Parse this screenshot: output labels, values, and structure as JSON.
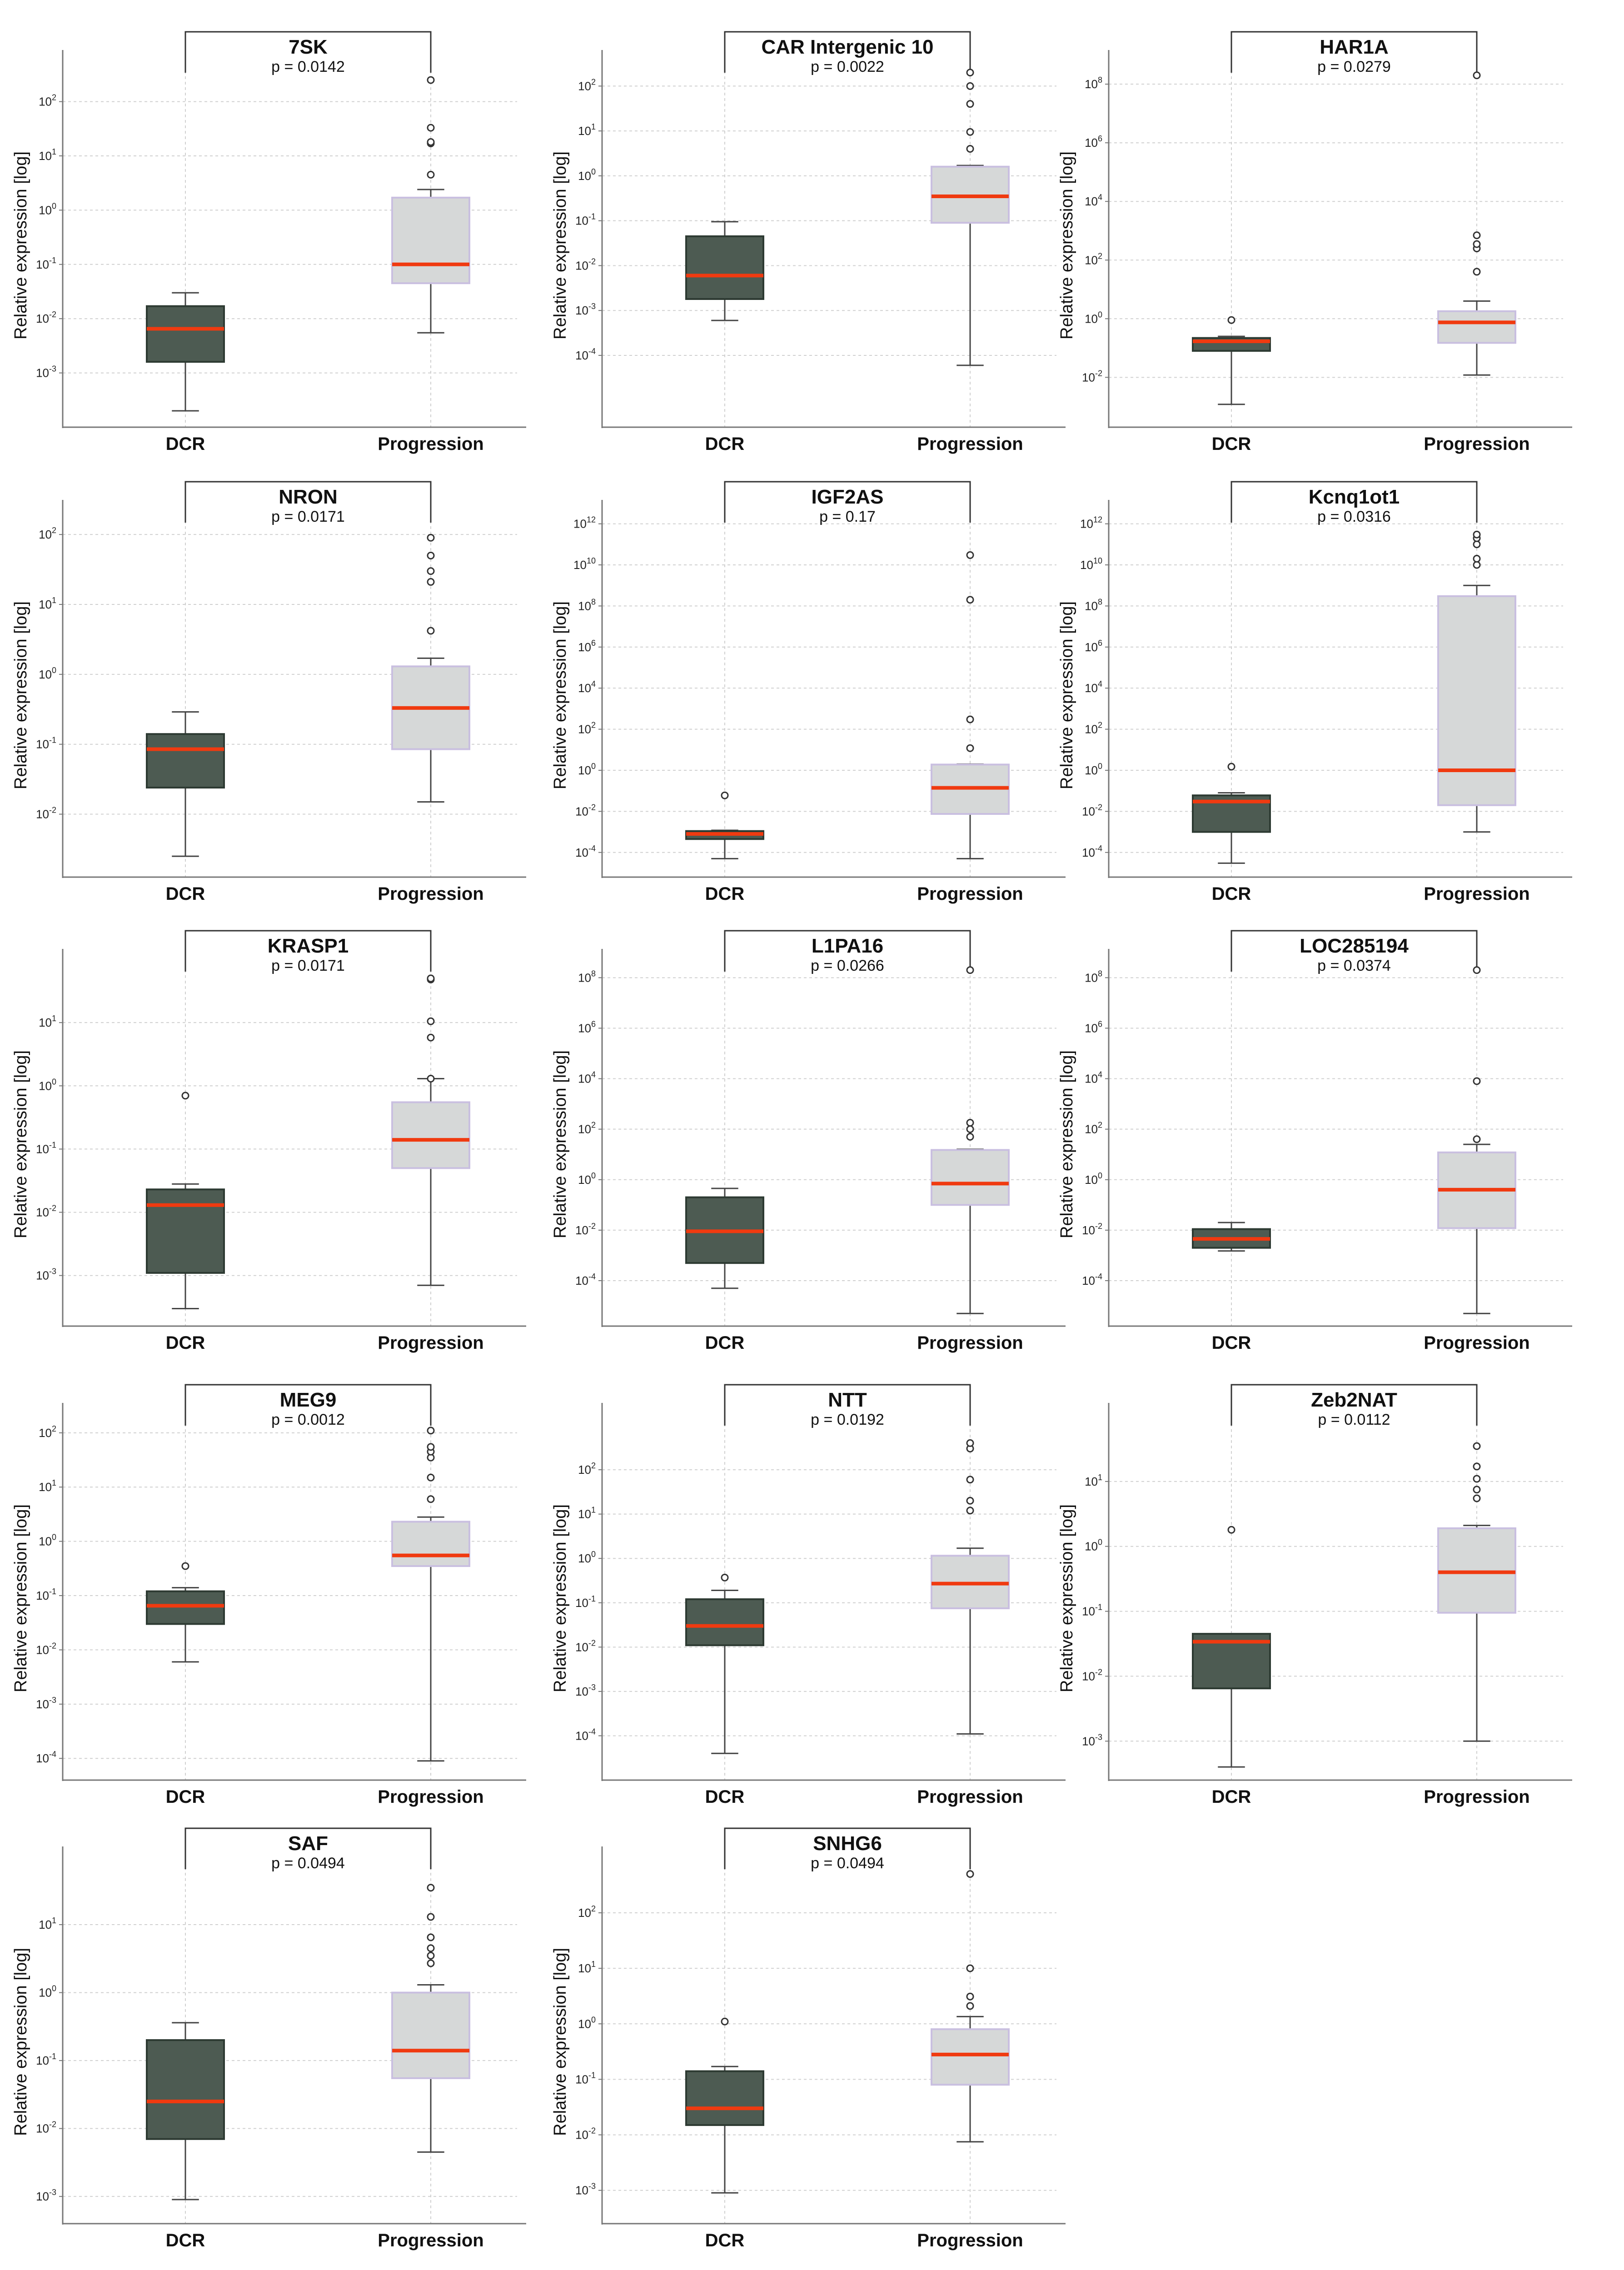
{
  "figure": {
    "ylabel": "Relative expression [log]",
    "categories": [
      "DCR",
      "Progression"
    ]
  },
  "colors": {
    "dcr_box": "#4d5b52",
    "prog_box": "#d6d8d8",
    "prog_box_edge": "#c9bfe0",
    "median": "#f03a10",
    "whisker": "#444444",
    "outlier": "#333333",
    "grid": "#d0d0d0",
    "axis": "#777777",
    "bracket": "#333333"
  },
  "chart_data": [
    {
      "type": "box",
      "title": "7SK",
      "pvalue": "p = 0.0142",
      "ylabel": "Relative expression [log]",
      "categories": [
        "DCR",
        "Progression"
      ],
      "ticks_exp": [
        -3,
        -2,
        -1,
        0,
        1,
        2
      ],
      "ylim_exp": [
        -4.0,
        2.7
      ],
      "boxes": [
        {
          "category": "DCR",
          "whislo": 0.0002,
          "q1": 0.0016,
          "med": 0.0065,
          "q3": 0.017,
          "whishi": 0.03,
          "outliers": []
        },
        {
          "category": "Progression",
          "whislo": 0.0055,
          "q1": 0.045,
          "med": 0.1,
          "q3": 1.7,
          "whishi": 2.4,
          "outliers": [
            4.5,
            17,
            18,
            33,
            250
          ]
        }
      ]
    },
    {
      "type": "box",
      "title": "CAR Intergenic 10",
      "pvalue": "p = 0.0022",
      "ylabel": "Relative expression [log]",
      "categories": [
        "DCR",
        "Progression"
      ],
      "ticks_exp": [
        -4,
        -3,
        -2,
        -1,
        0,
        1,
        2
      ],
      "ylim_exp": [
        -5.6,
        2.5
      ],
      "boxes": [
        {
          "category": "DCR",
          "whislo": 0.0006,
          "q1": 0.0018,
          "med": 0.006,
          "q3": 0.045,
          "whishi": 0.095,
          "outliers": []
        },
        {
          "category": "Progression",
          "whislo": 6e-05,
          "q1": 0.09,
          "med": 0.35,
          "q3": 1.6,
          "whishi": 1.7,
          "outliers": [
            4,
            9.5,
            40,
            100,
            200
          ]
        }
      ]
    },
    {
      "type": "box",
      "title": "HAR1A",
      "pvalue": "p = 0.0279",
      "ylabel": "Relative expression [log]",
      "categories": [
        "DCR",
        "Progression"
      ],
      "ticks_exp": [
        -2,
        0,
        2,
        4,
        6,
        8
      ],
      "ylim_exp": [
        -3.7,
        8.7
      ],
      "boxes": [
        {
          "category": "DCR",
          "whislo": 0.0012,
          "q1": 0.08,
          "med": 0.17,
          "q3": 0.22,
          "whishi": 0.25,
          "outliers": [
            0.9
          ]
        },
        {
          "category": "Progression",
          "whislo": 0.012,
          "q1": 0.15,
          "med": 0.75,
          "q3": 1.8,
          "whishi": 4,
          "outliers": [
            40,
            250,
            350,
            700,
            200000000
          ]
        }
      ]
    },
    {
      "type": "box",
      "title": "NRON",
      "pvalue": "p = 0.0171",
      "ylabel": "Relative expression [log]",
      "categories": [
        "DCR",
        "Progression"
      ],
      "ticks_exp": [
        -2,
        -1,
        0,
        1,
        2
      ],
      "ylim_exp": [
        -2.9,
        2.3
      ],
      "boxes": [
        {
          "category": "DCR",
          "whislo": 0.0025,
          "q1": 0.024,
          "med": 0.085,
          "q3": 0.14,
          "whishi": 0.29,
          "outliers": []
        },
        {
          "category": "Progression",
          "whislo": 0.015,
          "q1": 0.085,
          "med": 0.33,
          "q3": 1.3,
          "whishi": 1.7,
          "outliers": [
            4.2,
            21,
            30,
            50,
            90
          ]
        }
      ]
    },
    {
      "type": "box",
      "title": "IGF2AS",
      "pvalue": "p = 0.17",
      "ylabel": "Relative expression [log]",
      "categories": [
        "DCR",
        "Progression"
      ],
      "ticks_exp": [
        -4,
        -2,
        0,
        2,
        4,
        6,
        8,
        10,
        12
      ],
      "ylim_exp": [
        -5.2,
        12.5
      ],
      "boxes": [
        {
          "category": "DCR",
          "whislo": 5e-05,
          "q1": 0.00045,
          "med": 0.0008,
          "q3": 0.0011,
          "whishi": 0.0012,
          "outliers": [
            0.06
          ]
        },
        {
          "category": "Progression",
          "whislo": 5e-05,
          "q1": 0.0075,
          "med": 0.14,
          "q3": 1.9,
          "whishi": 2,
          "outliers": [
            12,
            300,
            200000000,
            30000000000
          ]
        }
      ]
    },
    {
      "type": "box",
      "title": "Kcnq1ot1",
      "pvalue": "p = 0.0316",
      "ylabel": "Relative expression [log]",
      "categories": [
        "DCR",
        "Progression"
      ],
      "ticks_exp": [
        -4,
        -2,
        0,
        2,
        4,
        6,
        8,
        10,
        12
      ],
      "ylim_exp": [
        -5.2,
        12.5
      ],
      "boxes": [
        {
          "category": "DCR",
          "whislo": 3e-05,
          "q1": 0.001,
          "med": 0.03,
          "q3": 0.06,
          "whishi": 0.08,
          "outliers": [
            1.5
          ]
        },
        {
          "category": "Progression",
          "whislo": 0.001,
          "q1": 0.02,
          "med": 1,
          "q3": 300000000,
          "whishi": 1000000000,
          "outliers": [
            10000000000,
            20000000000,
            100000000000,
            200000000000,
            300000000000
          ]
        }
      ]
    },
    {
      "type": "box",
      "title": "KRASP1",
      "pvalue": "p = 0.0171",
      "ylabel": "Relative expression [log]",
      "categories": [
        "DCR",
        "Progression"
      ],
      "ticks_exp": [
        -3,
        -2,
        -1,
        0,
        1
      ],
      "ylim_exp": [
        -3.8,
        1.95
      ],
      "boxes": [
        {
          "category": "DCR",
          "whislo": 0.0003,
          "q1": 0.0011,
          "med": 0.013,
          "q3": 0.023,
          "whishi": 0.028,
          "outliers": [
            0.7
          ]
        },
        {
          "category": "Progression",
          "whislo": 0.0007,
          "q1": 0.05,
          "med": 0.14,
          "q3": 0.55,
          "whishi": 1.3,
          "outliers": [
            1.3,
            5.8,
            10.5,
            48,
            50
          ]
        }
      ]
    },
    {
      "type": "box",
      "title": "L1PA16",
      "pvalue": "p = 0.0266",
      "ylabel": "Relative expression [log]",
      "categories": [
        "DCR",
        "Progression"
      ],
      "ticks_exp": [
        -4,
        -2,
        0,
        2,
        4,
        6,
        8
      ],
      "ylim_exp": [
        -5.8,
        8.6
      ],
      "boxes": [
        {
          "category": "DCR",
          "whislo": 5e-05,
          "q1": 0.0005,
          "med": 0.009,
          "q3": 0.2,
          "whishi": 0.45,
          "outliers": []
        },
        {
          "category": "Progression",
          "whislo": 5e-06,
          "q1": 0.1,
          "med": 0.7,
          "q3": 15,
          "whishi": 16,
          "outliers": [
            50,
            100,
            180,
            200000000
          ]
        }
      ]
    },
    {
      "type": "box",
      "title": "LOC285194",
      "pvalue": "p = 0.0374",
      "ylabel": "Relative expression [log]",
      "categories": [
        "DCR",
        "Progression"
      ],
      "ticks_exp": [
        -4,
        -2,
        0,
        2,
        4,
        6,
        8
      ],
      "ylim_exp": [
        -5.8,
        8.6
      ],
      "boxes": [
        {
          "category": "DCR",
          "whislo": 0.0015,
          "q1": 0.002,
          "med": 0.0045,
          "q3": 0.011,
          "whishi": 0.02,
          "outliers": []
        },
        {
          "category": "Progression",
          "whislo": 5e-06,
          "q1": 0.012,
          "med": 0.4,
          "q3": 12,
          "whishi": 25,
          "outliers": [
            40,
            8000,
            200000000
          ]
        }
      ]
    },
    {
      "type": "box",
      "title": "MEG9",
      "pvalue": "p = 0.0012",
      "ylabel": "Relative expression [log]",
      "categories": [
        "DCR",
        "Progression"
      ],
      "ticks_exp": [
        -4,
        -3,
        -2,
        -1,
        0,
        1,
        2
      ],
      "ylim_exp": [
        -4.4,
        2.3
      ],
      "boxes": [
        {
          "category": "DCR",
          "whislo": 0.006,
          "q1": 0.03,
          "med": 0.065,
          "q3": 0.12,
          "whishi": 0.14,
          "outliers": [
            0.35
          ]
        },
        {
          "category": "Progression",
          "whislo": 9e-05,
          "q1": 0.35,
          "med": 0.55,
          "q3": 2.3,
          "whishi": 2.8,
          "outliers": [
            6,
            15,
            35,
            45,
            55,
            110
          ]
        }
      ]
    },
    {
      "type": "box",
      "title": "NTT",
      "pvalue": "p = 0.0192",
      "ylabel": "Relative expression [log]",
      "categories": [
        "DCR",
        "Progression"
      ],
      "ticks_exp": [
        -4,
        -3,
        -2,
        -1,
        0,
        1,
        2
      ],
      "ylim_exp": [
        -5.0,
        3.2
      ],
      "boxes": [
        {
          "category": "DCR",
          "whislo": 4e-05,
          "q1": 0.011,
          "med": 0.03,
          "q3": 0.12,
          "whishi": 0.19,
          "outliers": [
            0.37
          ]
        },
        {
          "category": "Progression",
          "whislo": 0.00011,
          "q1": 0.075,
          "med": 0.27,
          "q3": 1.15,
          "whishi": 1.7,
          "outliers": [
            12,
            20,
            60,
            300,
            400
          ]
        }
      ]
    },
    {
      "type": "box",
      "title": "Zeb2NAT",
      "pvalue": "p = 0.0112",
      "ylabel": "Relative expression [log]",
      "categories": [
        "DCR",
        "Progression"
      ],
      "ticks_exp": [
        -3,
        -2,
        -1,
        0,
        1
      ],
      "ylim_exp": [
        -3.6,
        2.0
      ],
      "boxes": [
        {
          "category": "DCR",
          "whislo": 0.0004,
          "q1": 0.0065,
          "med": 0.034,
          "q3": 0.045,
          "whishi": 0.045,
          "outliers": [
            1.8
          ]
        },
        {
          "category": "Progression",
          "whislo": 0.001,
          "q1": 0.095,
          "med": 0.4,
          "q3": 1.9,
          "whishi": 2.1,
          "outliers": [
            5.5,
            7.5,
            11,
            17,
            35
          ]
        }
      ]
    },
    {
      "type": "box",
      "title": "SAF",
      "pvalue": "p = 0.0494",
      "ylabel": "Relative expression [log]",
      "categories": [
        "DCR",
        "Progression"
      ],
      "ticks_exp": [
        -3,
        -2,
        -1,
        0,
        1
      ],
      "ylim_exp": [
        -3.4,
        1.95
      ],
      "boxes": [
        {
          "category": "DCR",
          "whislo": 0.0009,
          "q1": 0.007,
          "med": 0.025,
          "q3": 0.2,
          "whishi": 0.36,
          "outliers": []
        },
        {
          "category": "Progression",
          "whislo": 0.0045,
          "q1": 0.055,
          "med": 0.14,
          "q3": 1,
          "whishi": 1.3,
          "outliers": [
            2.7,
            3.5,
            4.5,
            6.5,
            13,
            35
          ]
        }
      ]
    },
    {
      "type": "box",
      "title": "SNHG6",
      "pvalue": "p = 0.0494",
      "ylabel": "Relative expression [log]",
      "categories": [
        "DCR",
        "Progression"
      ],
      "ticks_exp": [
        -3,
        -2,
        -1,
        0,
        1,
        2
      ],
      "ylim_exp": [
        -3.6,
        2.95
      ],
      "boxes": [
        {
          "category": "DCR",
          "whislo": 0.0009,
          "q1": 0.015,
          "med": 0.03,
          "q3": 0.14,
          "whishi": 0.17,
          "outliers": [
            1.1
          ]
        },
        {
          "category": "Progression",
          "whislo": 0.0075,
          "q1": 0.08,
          "med": 0.28,
          "q3": 0.8,
          "whishi": 1.35,
          "outliers": [
            2.1,
            3.1,
            10,
            500
          ]
        }
      ]
    }
  ]
}
